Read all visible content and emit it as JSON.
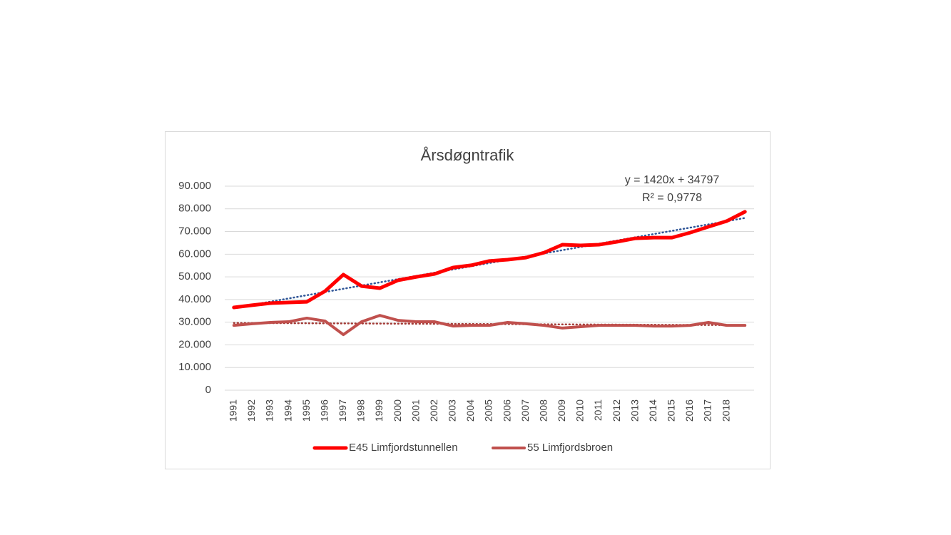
{
  "chart_data": {
    "type": "line",
    "title": "Årsdøgntrafik",
    "categories": [
      "1991",
      "1992",
      "1993",
      "1994",
      "1995",
      "1996",
      "1997",
      "1998",
      "1999",
      "2000",
      "2001",
      "2002",
      "2003",
      "2004",
      "2005",
      "2006",
      "2007",
      "2008",
      "2009",
      "2010",
      "2011",
      "2012",
      "2013",
      "2014",
      "2015",
      "2016",
      "2017",
      "2018",
      null
    ],
    "series": [
      {
        "name": "E45 Limfjordstunnellen",
        "color": "#ff0000",
        "values": [
          36500,
          37500,
          38400,
          38700,
          39000,
          43700,
          51000,
          45900,
          45000,
          48500,
          50000,
          51300,
          54100,
          55100,
          57000,
          57600,
          58500,
          60700,
          64200,
          63900,
          64200,
          65500,
          67000,
          67300,
          67300,
          69500,
          72100,
          74600,
          78700
        ],
        "trendline": {
          "color": "#2f5597",
          "slope": 1420,
          "intercept": 34797,
          "equation": "y = 1420x + 34797",
          "r2": "R² = 0,9778"
        }
      },
      {
        "name": "55 Limfjordsbroen",
        "color": "#c0504d",
        "values": [
          28600,
          29300,
          29900,
          30200,
          31800,
          30500,
          24500,
          30200,
          33000,
          30800,
          30200,
          30200,
          28300,
          28600,
          28600,
          29900,
          29300,
          28600,
          27400,
          28000,
          28600,
          28600,
          28600,
          28300,
          28300,
          28600,
          29900,
          28600,
          28600
        ],
        "trendline": {
          "color": "#a33a36",
          "slope": -35,
          "intercept": 29700
        }
      }
    ],
    "ylim": [
      0,
      90000
    ],
    "yticks": [
      0,
      {
        "value": 10000,
        "label": "10.000"
      },
      {
        "value": 20000,
        "label": "20.000"
      },
      {
        "value": 30000,
        "label": "30.000"
      },
      {
        "value": 40000,
        "label": "40.000"
      },
      {
        "value": 50000,
        "label": "50.000"
      },
      {
        "value": 60000,
        "label": "60.000"
      },
      {
        "value": 70000,
        "label": "70.000"
      },
      {
        "value": 80000,
        "label": "80.000"
      },
      {
        "value": 90000,
        "label": "90.000"
      }
    ],
    "grid": true,
    "legend": "bottom"
  }
}
